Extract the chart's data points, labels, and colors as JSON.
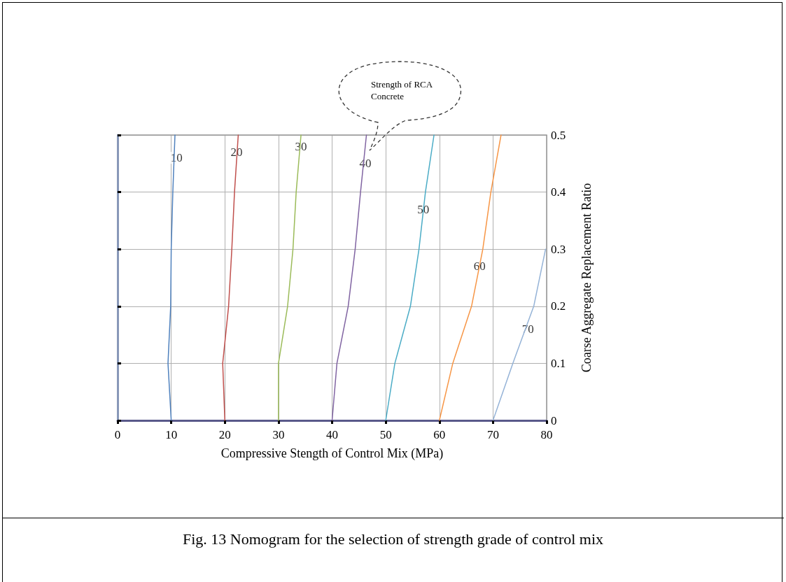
{
  "chart_data": {
    "type": "line",
    "title": "Fig. 13 Nomogram for the selection of strength grade of control mix",
    "xlabel": "Compressive Stength of Control Mix (MPa)",
    "ylabel": "Coarse Aggregate Replacement Ratio",
    "series": [
      {
        "color": "#4f81bd",
        "x": [
          10,
          9.4,
          9.9,
          10,
          10.3,
          10.7
        ],
        "values": [
          0,
          0.1,
          0.2,
          0.3,
          0.4,
          0.5
        ]
      },
      {
        "color": "#c0504d",
        "x": [
          20,
          19.6,
          20.7,
          21.3,
          21.8,
          22.5
        ],
        "values": [
          0,
          0.1,
          0.2,
          0.3,
          0.4,
          0.5
        ]
      },
      {
        "color": "#9bbb59",
        "x": [
          30,
          30,
          31.7,
          32.7,
          33.3,
          34.2
        ],
        "values": [
          0,
          0.1,
          0.2,
          0.3,
          0.4,
          0.5
        ]
      },
      {
        "color": "#8064a2",
        "x": [
          40,
          40.9,
          43,
          44.3,
          45.3,
          46.4
        ],
        "values": [
          0,
          0.1,
          0.2,
          0.3,
          0.4,
          0.5
        ]
      },
      {
        "color": "#4bacc6",
        "x": [
          50,
          51.7,
          54.6,
          56.2,
          57.4,
          59
        ],
        "values": [
          0,
          0.1,
          0.2,
          0.3,
          0.4,
          0.5
        ]
      },
      {
        "color": "#f79646",
        "x": [
          60,
          62.5,
          66,
          68.1,
          69.6,
          71.5
        ],
        "values": [
          0,
          0.1,
          0.2,
          0.3,
          0.4,
          0.5
        ]
      },
      {
        "color": "#95b3d7",
        "x": [
          70,
          73.7,
          77.6,
          79.8
        ],
        "values": [
          0,
          0.1,
          0.2,
          0.3
        ]
      }
    ],
    "xlim": [
      0,
      80
    ],
    "xticks": [
      0,
      10,
      20,
      30,
      40,
      50,
      60,
      70,
      80
    ],
    "ylim": [
      0,
      0.5
    ],
    "yticks": [
      0,
      0.1,
      0.2,
      0.3,
      0.4,
      0.5
    ],
    "grid": true,
    "marker": "none",
    "line_style": "solid",
    "annotations": [
      {
        "text": "10",
        "x": 11,
        "y": 0.46
      },
      {
        "text": "20",
        "x": 22.2,
        "y": 0.47
      },
      {
        "text": "30",
        "x": 34.2,
        "y": 0.48
      },
      {
        "text": "40",
        "x": 46.2,
        "y": 0.45
      },
      {
        "text": "50",
        "x": 57,
        "y": 0.37
      },
      {
        "text": "60",
        "x": 67.5,
        "y": 0.27
      },
      {
        "text": "70",
        "x": 76.5,
        "y": 0.16
      },
      "Strength of RCA Concrete"
    ]
  }
}
